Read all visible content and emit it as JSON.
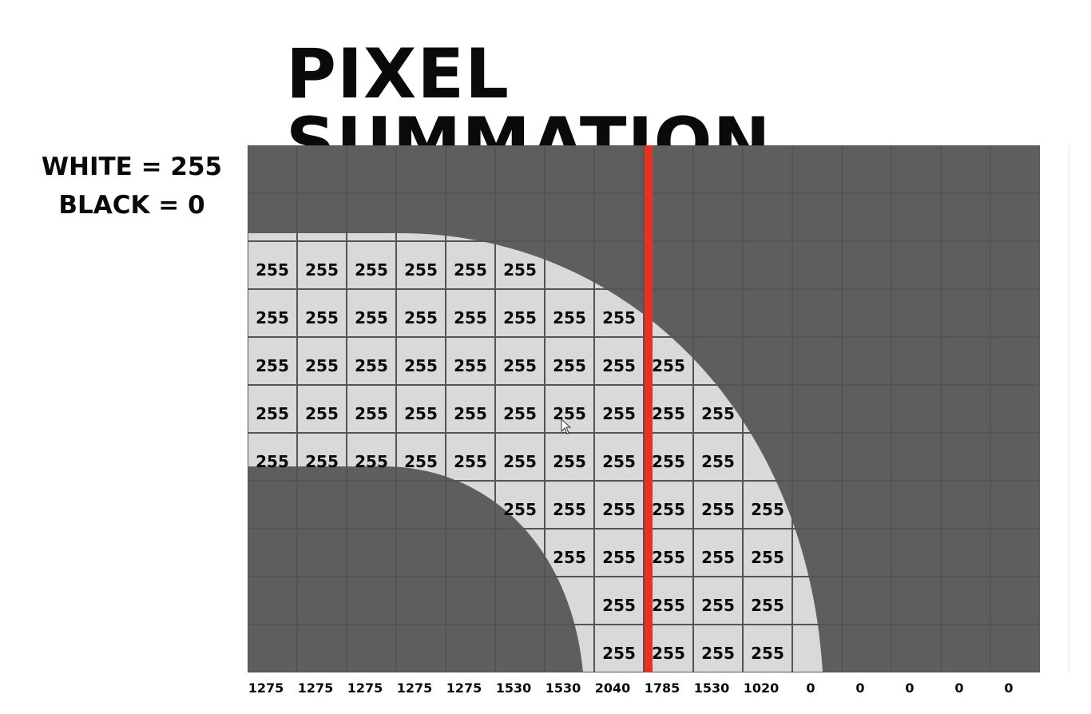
{
  "title": "PIXEL SUMMATION",
  "legend": {
    "white": "WHITE = 255",
    "black": "BLACK = 0"
  },
  "colors": {
    "dark_pixel": "#5e5e5e",
    "light_pixel": "#d9d9d9",
    "red_marker": "#e8321f"
  },
  "grid": {
    "columns": 16,
    "rows": 11,
    "pixel_value_label": "255",
    "white_cells": [
      [
        0,
        1,
        2,
        3,
        4,
        5
      ],
      [
        0,
        1,
        2,
        3,
        4,
        5,
        6,
        7
      ],
      [
        0,
        1,
        2,
        3,
        4,
        5,
        6,
        7,
        8
      ],
      [
        0,
        1,
        2,
        3,
        4,
        5,
        6,
        7,
        8,
        9
      ],
      [
        0,
        1,
        2,
        3,
        4,
        5,
        6,
        7,
        8,
        9
      ],
      [
        5,
        6,
        7,
        8,
        9,
        10
      ],
      [
        6,
        7,
        8,
        9,
        10
      ],
      [
        7,
        8,
        9,
        10
      ],
      [
        7,
        8,
        9,
        10
      ]
    ],
    "white_row_start": 2
  },
  "column_sums": [
    "1275",
    "1275",
    "1275",
    "1275",
    "1275",
    "1530",
    "1530",
    "2040",
    "1785",
    "1530",
    "1020",
    "0",
    "0",
    "0",
    "0",
    "0"
  ]
}
